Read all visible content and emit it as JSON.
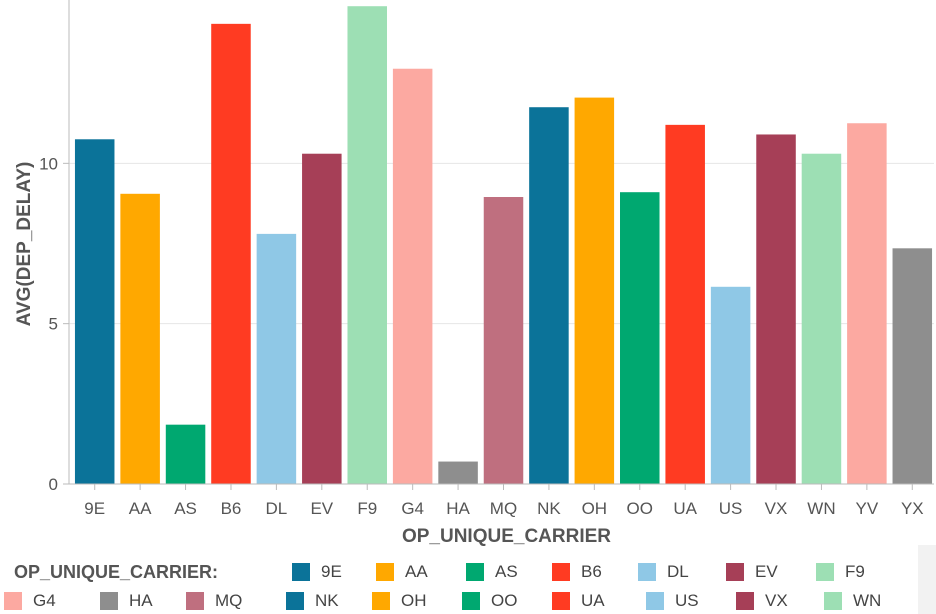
{
  "chart_data": {
    "type": "bar",
    "xlabel": "OP_UNIQUE_CARRIER",
    "ylabel": "AVG(DEP_DELAY)",
    "ylim": [
      0,
      15
    ],
    "yticks": [
      0,
      5,
      10
    ],
    "grid": true,
    "legend_title": "OP_UNIQUE_CARRIER:",
    "legend_position": "bottom",
    "categories": [
      "9E",
      "AA",
      "AS",
      "B6",
      "DL",
      "EV",
      "F9",
      "G4",
      "HA",
      "MQ",
      "NK",
      "OH",
      "OO",
      "UA",
      "US",
      "VX",
      "WN",
      "YV",
      "YX"
    ],
    "values": [
      10.75,
      9.05,
      1.85,
      14.35,
      7.8,
      10.3,
      14.9,
      12.95,
      0.7,
      8.95,
      11.75,
      12.05,
      9.1,
      11.2,
      6.15,
      10.9,
      10.3,
      11.25,
      7.35
    ],
    "colors": {
      "9E": "#0b7399",
      "AA": "#ffa800",
      "AS": "#00a870",
      "B6": "#ff3b22",
      "DL": "#8fc8e6",
      "EV": "#a63f57",
      "F9": "#9ddfb4",
      "G4": "#fca9a1",
      "HA": "#8e8e8e",
      "MQ": "#bf6f7f",
      "NK": "#0b7399",
      "OH": "#ffa800",
      "OO": "#00a870",
      "UA": "#ff3b22",
      "US": "#8fc8e6",
      "VX": "#a63f57",
      "WN": "#9ddfb4",
      "YV": "#fca9a1",
      "YX": "#8e8e8e"
    }
  }
}
